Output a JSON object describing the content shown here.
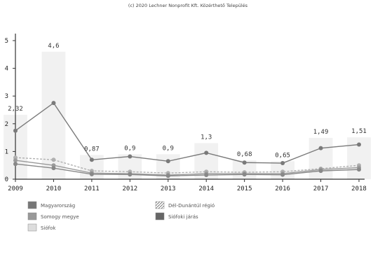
{
  "chart_data": {
    "type": "line",
    "title": "(c) 2020 Lechner Nonprofit Kft. Közérthető Település",
    "categories": [
      "2009",
      "2010",
      "2011",
      "2012",
      "2013",
      "2014",
      "2015",
      "2016",
      "2017",
      "2018"
    ],
    "ylim": [
      0,
      5
    ],
    "yticks": [
      "0",
      "1",
      "2",
      "3",
      "4",
      "5"
    ],
    "series": [
      {
        "name": "Siófok",
        "color": "#8a8a8a",
        "bar": true,
        "values": [
          2.32,
          4.6,
          0.87,
          0.9,
          0.9,
          1.3,
          0.68,
          0.65,
          1.49,
          1.51
        ],
        "labels": [
          "2,32",
          "4,6",
          "0,87",
          "0,9",
          "0,9",
          "1,3",
          "0,68",
          "0,65",
          "1,49",
          "1,51"
        ]
      },
      {
        "name": "Siófoki járás",
        "color": "#7a7a7a",
        "values": [
          1.75,
          2.75,
          0.7,
          0.82,
          0.65,
          0.95,
          0.6,
          0.58,
          1.12,
          1.25
        ]
      },
      {
        "name": "Dél-Dunántúl régió",
        "color": "#b0b0b0",
        "values": [
          0.78,
          0.7,
          0.3,
          0.27,
          0.22,
          0.27,
          0.25,
          0.27,
          0.38,
          0.5
        ]
      },
      {
        "name": "Somogy megye",
        "color": "#9a9a9a",
        "values": [
          0.68,
          0.5,
          0.22,
          0.2,
          0.15,
          0.2,
          0.2,
          0.2,
          0.35,
          0.42
        ]
      },
      {
        "name": "Magyarország",
        "color": "#888888",
        "values": [
          0.55,
          0.4,
          0.18,
          0.17,
          0.12,
          0.15,
          0.17,
          0.16,
          0.3,
          0.35
        ]
      }
    ],
    "legend": {
      "placement": "bottom-left",
      "items": [
        {
          "name": "Magyarország",
          "color": "#777777",
          "pattern": "solid"
        },
        {
          "name": "Dél-Dunántúl régió",
          "color": "#aaaaaa",
          "pattern": "hatch"
        },
        {
          "name": "Somogy megye",
          "color": "#999999",
          "pattern": "solid"
        },
        {
          "name": "Siófoki járás",
          "color": "#666666",
          "pattern": "solid"
        },
        {
          "name": "Siófok",
          "color": "#dddddd",
          "pattern": "solid"
        }
      ]
    },
    "grid": false
  },
  "colors": {
    "axis": "#333333",
    "bar_fill": "#f1f1f1"
  }
}
